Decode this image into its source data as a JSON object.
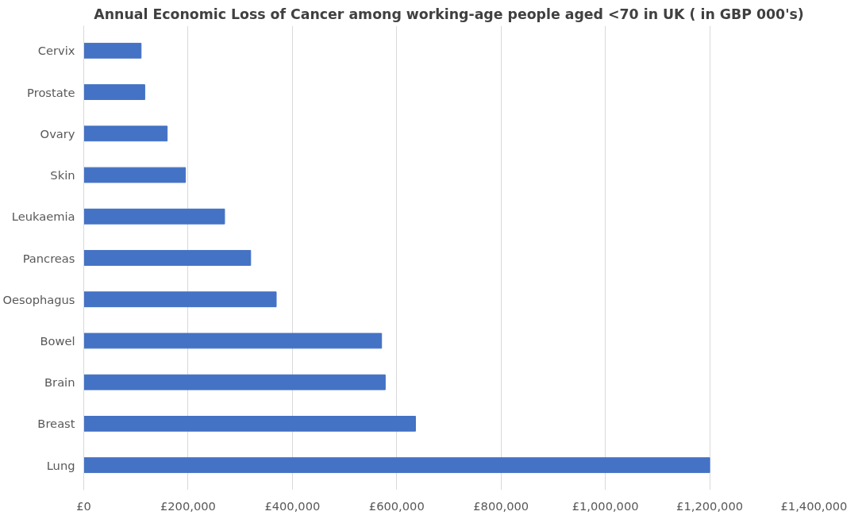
{
  "chart_data": {
    "type": "bar",
    "orientation": "horizontal",
    "title": "Annual Economic Loss of Cancer among working-age people aged <70 in UK ( in GBP 000's)",
    "categories": [
      "Cervix",
      "Prostate",
      "Ovary",
      "Skin",
      "Leukaemia",
      "Pancreas",
      "Oesophagus",
      "Bowel",
      "Brain",
      "Breast",
      "Lung"
    ],
    "values": [
      110000,
      117000,
      160000,
      195000,
      270000,
      320000,
      369000,
      571000,
      578000,
      636000,
      1200000
    ],
    "color": "#4472c4",
    "xlim": [
      0,
      1400000
    ],
    "xticks": [
      {
        "value": 0,
        "label": "£0"
      },
      {
        "value": 200000,
        "label": "£200,000"
      },
      {
        "value": 400000,
        "label": "£400,000"
      },
      {
        "value": 600000,
        "label": "£600,000"
      },
      {
        "value": 800000,
        "label": "£800,000"
      },
      {
        "value": 1000000,
        "label": "£1,000,000"
      },
      {
        "value": 1200000,
        "label": "£1,200,000"
      },
      {
        "value": 1400000,
        "label": "£1,400,000"
      }
    ],
    "grid": "x"
  }
}
